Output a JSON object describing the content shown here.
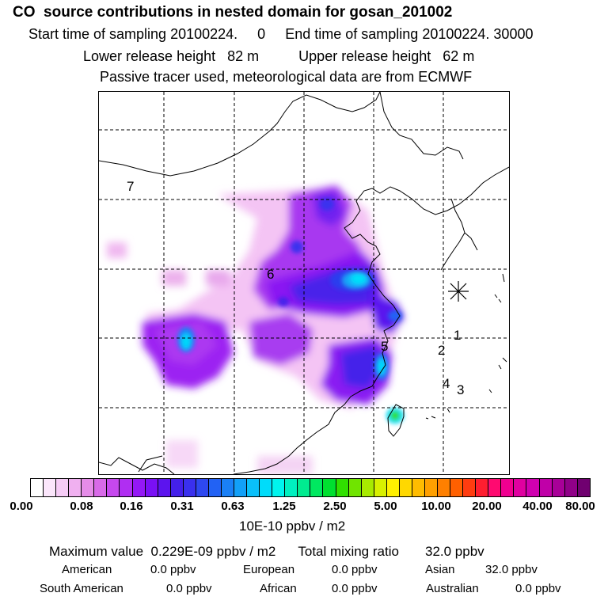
{
  "header": {
    "title": "CO  source contributions in nested domain for gosan_201002",
    "start_label": "Start time of sampling",
    "start_value": "20100224.     0",
    "end_label": "End time of sampling",
    "end_value": "20100224. 30000",
    "lower_label": "Lower release height",
    "lower_value": "82 m",
    "upper_label": "Upper release height",
    "upper_value": "62 m",
    "note": "Passive tracer used, meteorological data are from ECMWF"
  },
  "map": {
    "region_labels": [
      "7",
      "6",
      "5",
      "1",
      "2",
      "4",
      "3"
    ],
    "receptor_marker": "station-star-icon"
  },
  "colorbar": {
    "tick_labels": [
      "0.00",
      "0.08",
      "0.16",
      "0.31",
      "0.63",
      "1.25",
      "2.50",
      "5.00",
      "10.00",
      "20.00",
      "40.00",
      "80.00"
    ],
    "segment_colors": [
      "#ffffff",
      "#fbe6fb",
      "#f6ccf6",
      "#f0b0f0",
      "#e58ce8",
      "#d86ae8",
      "#c648ee",
      "#b02ef2",
      "#9418f5",
      "#7a10f5",
      "#5c14ee",
      "#4420ea",
      "#3a30ee",
      "#2e48f0",
      "#2262f4",
      "#1a80f6",
      "#12a0f8",
      "#0ac0fa",
      "#00dcfa",
      "#00f4ee",
      "#00f0c0",
      "#00ec90",
      "#00e860",
      "#00e030",
      "#30e000",
      "#70e400",
      "#a8ea00",
      "#d8f000",
      "#fff000",
      "#ffd800",
      "#ffbc00",
      "#ffa000",
      "#ff8000",
      "#ff6000",
      "#ff3c10",
      "#ff1e30",
      "#ff0a70",
      "#f00090",
      "#e000a0",
      "#d000b0",
      "#c000a8",
      "#a80098",
      "#900088",
      "#700070"
    ],
    "units": "10E-10 ppbv / m2"
  },
  "stats": {
    "max_label": "Maximum value",
    "max_value": "0.229E-09 ppbv / m2",
    "total_label": "Total mixing ratio",
    "total_value": "32.0 ppbv",
    "american_label": "American",
    "american_value": "0.0 ppbv",
    "european_label": "European",
    "european_value": "0.0 ppbv",
    "asian_label": "Asian",
    "asian_value": "32.0 ppbv",
    "south_american_label": "South American",
    "south_american_value": "0.0 ppbv",
    "african_label": "African",
    "african_value": "0.0 ppbv",
    "australian_label": "Australian",
    "australian_value": "0.0 ppbv"
  }
}
